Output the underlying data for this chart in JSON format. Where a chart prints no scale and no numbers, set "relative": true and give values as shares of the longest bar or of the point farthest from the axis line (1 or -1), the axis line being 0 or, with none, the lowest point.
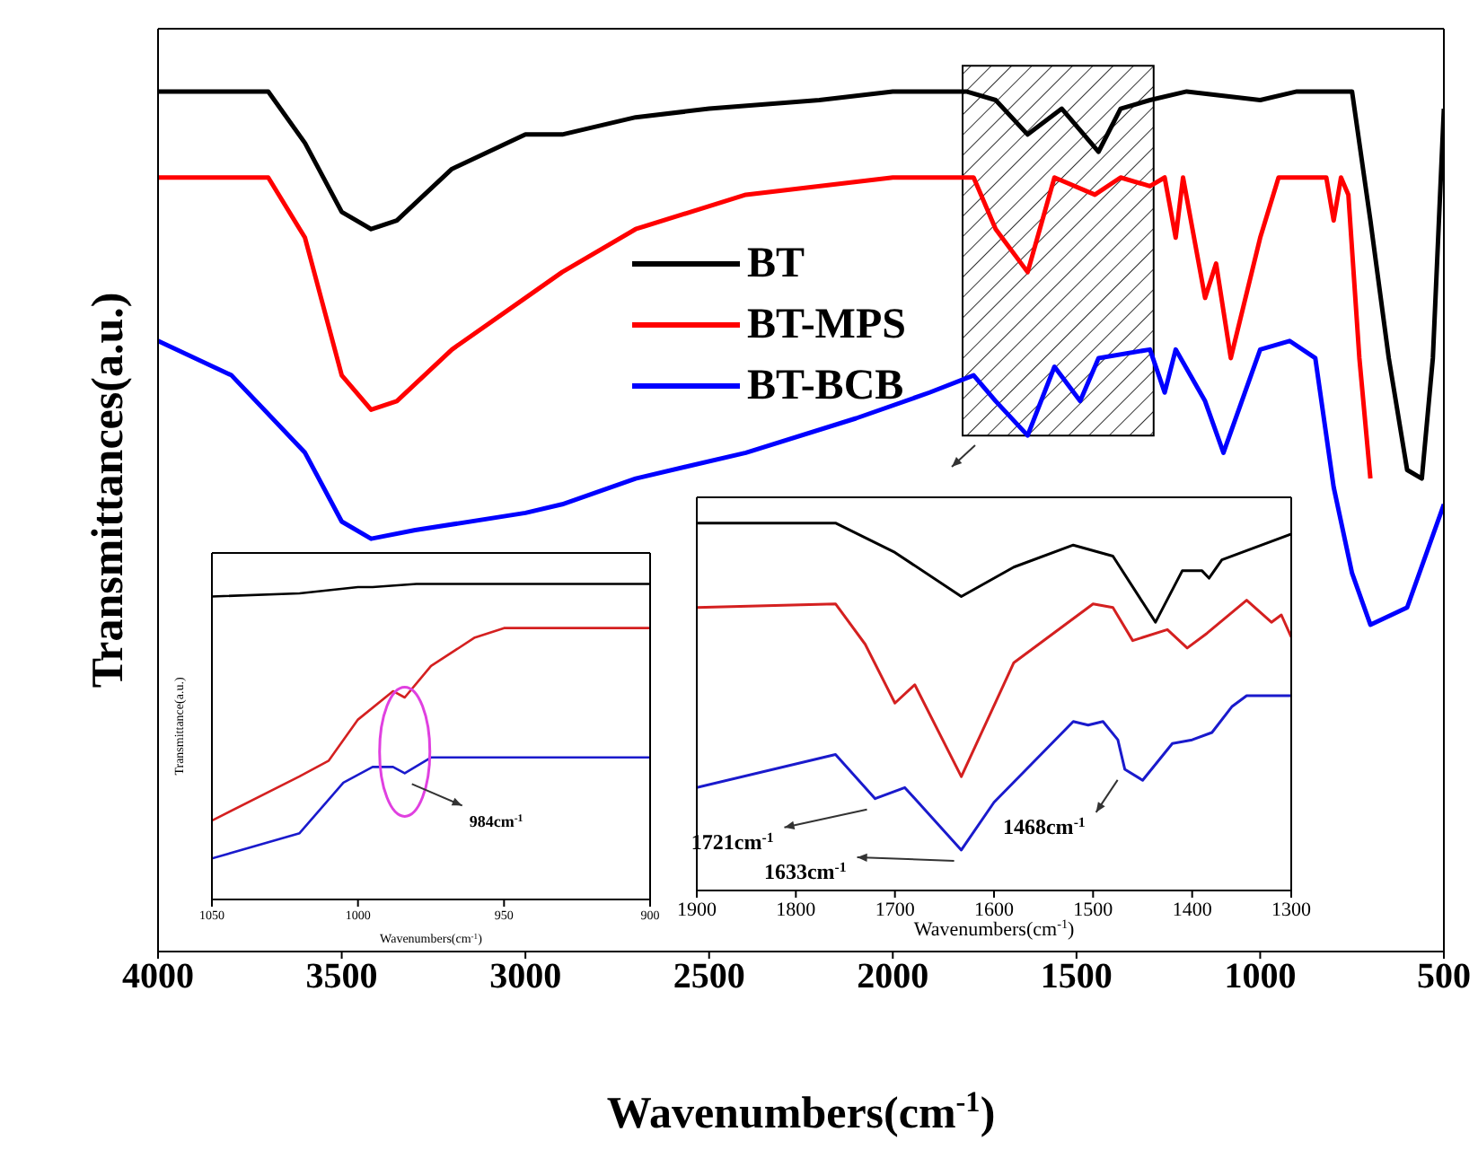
{
  "chart_data": [
    {
      "type": "line",
      "relative": true,
      "xlabel": "Wavenumbers(cm$^{-1}$)",
      "ylabel": "Transmittances(a.u.)",
      "xlim": [
        4000,
        500
      ],
      "xticks": [
        4000,
        3500,
        3000,
        2500,
        2000,
        1500,
        1000,
        500
      ],
      "legend": "top",
      "marker": "none",
      "grid": false,
      "bands": [
        {
          "axis": "x",
          "from": 1810,
          "to": 1290
        }
      ],
      "series": [
        {
          "name": "BT",
          "color": "#000000",
          "x": [
            4000,
            3700,
            3600,
            3500,
            3420,
            3350,
            3200,
            3000,
            2900,
            2700,
            2500,
            2200,
            2000,
            1800,
            1720,
            1633,
            1540,
            1440,
            1380,
            1300,
            1200,
            1000,
            900,
            800,
            750,
            700,
            650,
            600,
            560,
            530,
            500
          ],
          "values": [
            1.0,
            1.0,
            0.94,
            0.86,
            0.84,
            0.85,
            0.91,
            0.95,
            0.95,
            0.97,
            0.98,
            0.99,
            1.0,
            1.0,
            0.99,
            0.95,
            0.98,
            0.93,
            0.98,
            0.99,
            1.0,
            0.99,
            1.0,
            1.0,
            1.0,
            0.85,
            0.69,
            0.56,
            0.55,
            0.69,
            0.98
          ]
        },
        {
          "name": "BT-MPS",
          "color": "#ff0000",
          "x": [
            4000,
            3700,
            3600,
            3500,
            3420,
            3350,
            3200,
            3000,
            2900,
            2700,
            2400,
            2000,
            1780,
            1720,
            1633,
            1560,
            1450,
            1380,
            1300,
            1260,
            1230,
            1210,
            1150,
            1120,
            1080,
            1000,
            950,
            820,
            800,
            780,
            760,
            730,
            700
          ],
          "values": [
            0.9,
            0.9,
            0.83,
            0.67,
            0.63,
            0.64,
            0.7,
            0.76,
            0.79,
            0.84,
            0.88,
            0.9,
            0.9,
            0.84,
            0.79,
            0.9,
            0.88,
            0.9,
            0.89,
            0.9,
            0.83,
            0.9,
            0.76,
            0.8,
            0.69,
            0.83,
            0.9,
            0.9,
            0.85,
            0.9,
            0.88,
            0.69,
            0.55
          ]
        },
        {
          "name": "BT-BCB",
          "color": "#0000ff",
          "x": [
            4000,
            3800,
            3600,
            3500,
            3420,
            3300,
            3000,
            2900,
            2700,
            2400,
            2100,
            1900,
            1780,
            1720,
            1633,
            1560,
            1490,
            1440,
            1300,
            1260,
            1230,
            1150,
            1100,
            1000,
            920,
            850,
            800,
            750,
            700,
            600,
            500
          ],
          "values": [
            0.71,
            0.67,
            0.58,
            0.5,
            0.48,
            0.49,
            0.51,
            0.52,
            0.55,
            0.58,
            0.62,
            0.65,
            0.67,
            0.64,
            0.6,
            0.68,
            0.64,
            0.69,
            0.7,
            0.65,
            0.7,
            0.64,
            0.58,
            0.7,
            0.71,
            0.69,
            0.54,
            0.44,
            0.38,
            0.4,
            0.52
          ]
        }
      ]
    },
    {
      "type": "line",
      "relative": true,
      "xlabel": "Wavenumbers(cm$^{-1}$)",
      "ylabel": "Transmittance(a.u.)",
      "xlim": [
        1050,
        900
      ],
      "xticks": [
        1050,
        1000,
        950,
        900
      ],
      "marker": "none",
      "annotations": [
        {
          "text": "984cm$^{-1}$",
          "x": 984,
          "y": 0.4
        }
      ],
      "series": [
        {
          "color": "#000000",
          "x": [
            1050,
            1020,
            1000,
            995,
            980,
            900
          ],
          "values": [
            0.96,
            0.97,
            0.99,
            0.99,
            1.0,
            1.0
          ]
        },
        {
          "color": "#d42020",
          "x": [
            1050,
            1020,
            1010,
            1000,
            988,
            984,
            975,
            960,
            950,
            900
          ],
          "values": [
            0.25,
            0.39,
            0.44,
            0.57,
            0.66,
            0.64,
            0.74,
            0.83,
            0.86,
            0.86
          ]
        },
        {
          "color": "#1a1acc",
          "x": [
            1050,
            1020,
            1005,
            995,
            988,
            984,
            975,
            900
          ],
          "values": [
            0.13,
            0.21,
            0.37,
            0.42,
            0.42,
            0.4,
            0.45,
            0.45
          ]
        }
      ]
    },
    {
      "type": "line",
      "relative": true,
      "xlabel": "Wavenumbers(cm$^{-1}$)",
      "xlim": [
        1900,
        1300
      ],
      "xticks": [
        1900,
        1800,
        1700,
        1600,
        1500,
        1400,
        1300
      ],
      "marker": "none",
      "annotations": [
        {
          "text": "1721cm$^{-1}$",
          "x": 1721,
          "y": 0.25
        },
        {
          "text": "1633cm$^{-1}$",
          "x": 1633,
          "y": 0.11
        },
        {
          "text": "1468cm$^{-1}$",
          "x": 1468,
          "y": 0.33
        }
      ],
      "series": [
        {
          "color": "#000000",
          "x": [
            1900,
            1760,
            1700,
            1633,
            1580,
            1520,
            1480,
            1437,
            1410,
            1390,
            1383,
            1370,
            1300
          ],
          "values": [
            1.0,
            1.0,
            0.92,
            0.8,
            0.88,
            0.94,
            0.91,
            0.73,
            0.87,
            0.87,
            0.85,
            0.9,
            0.97
          ]
        },
        {
          "color": "#d42020",
          "x": [
            1900,
            1760,
            1730,
            1700,
            1680,
            1633,
            1580,
            1500,
            1480,
            1460,
            1425,
            1405,
            1385,
            1345,
            1320,
            1310,
            1300
          ],
          "values": [
            0.77,
            0.78,
            0.67,
            0.51,
            0.56,
            0.31,
            0.62,
            0.78,
            0.77,
            0.68,
            0.71,
            0.66,
            0.7,
            0.79,
            0.73,
            0.75,
            0.69
          ]
        },
        {
          "color": "#1a1acc",
          "x": [
            1900,
            1760,
            1720,
            1690,
            1633,
            1600,
            1520,
            1505,
            1490,
            1475,
            1468,
            1450,
            1420,
            1400,
            1380,
            1360,
            1345,
            1300
          ],
          "values": [
            0.28,
            0.37,
            0.25,
            0.28,
            0.11,
            0.24,
            0.46,
            0.45,
            0.46,
            0.41,
            0.33,
            0.3,
            0.4,
            0.41,
            0.43,
            0.5,
            0.53,
            0.53
          ]
        }
      ]
    }
  ]
}
